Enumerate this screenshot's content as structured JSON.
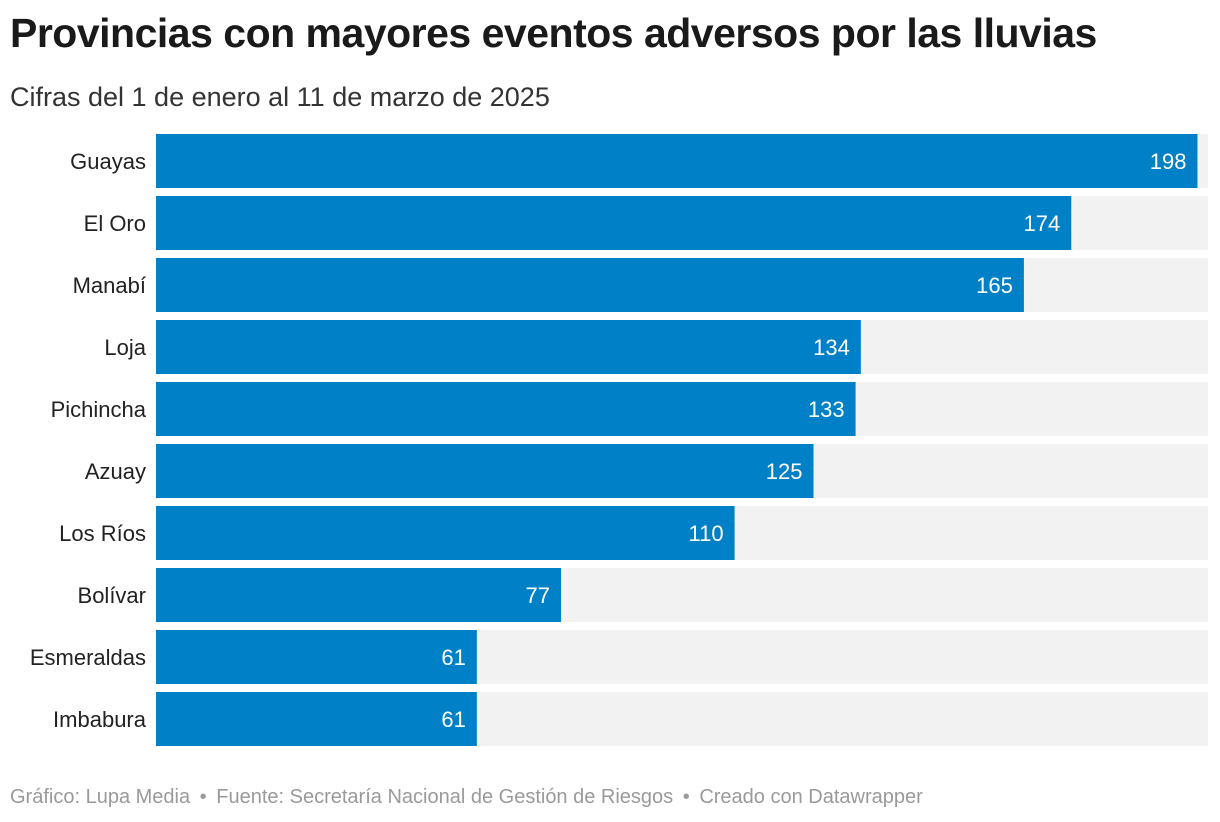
{
  "chart_data": {
    "type": "bar",
    "orientation": "horizontal",
    "title": "Provincias con mayores eventos adversos por las lluvias",
    "subtitle": "Cifras del 1 de enero al 11 de marzo de 2025",
    "categories": [
      "Guayas",
      "El Oro",
      "Manabí",
      "Loja",
      "Pichincha",
      "Azuay",
      "Los Ríos",
      "Bolívar",
      "Esmeraldas",
      "Imbabura"
    ],
    "values": [
      198,
      174,
      165,
      134,
      133,
      125,
      110,
      77,
      61,
      61
    ],
    "xlim": [
      0,
      200
    ],
    "grid": false,
    "legend": "none",
    "colors": {
      "bar": "#0080c6",
      "track": "#f2f2f2",
      "value_label": "#ffffff",
      "category_label": "#222222"
    }
  },
  "footer": {
    "credit": "Gráfico: Lupa Media",
    "source": "Fuente: Secretaría Nacional de Gestión de Riesgos",
    "tool": "Creado con Datawrapper",
    "separator": "•"
  }
}
